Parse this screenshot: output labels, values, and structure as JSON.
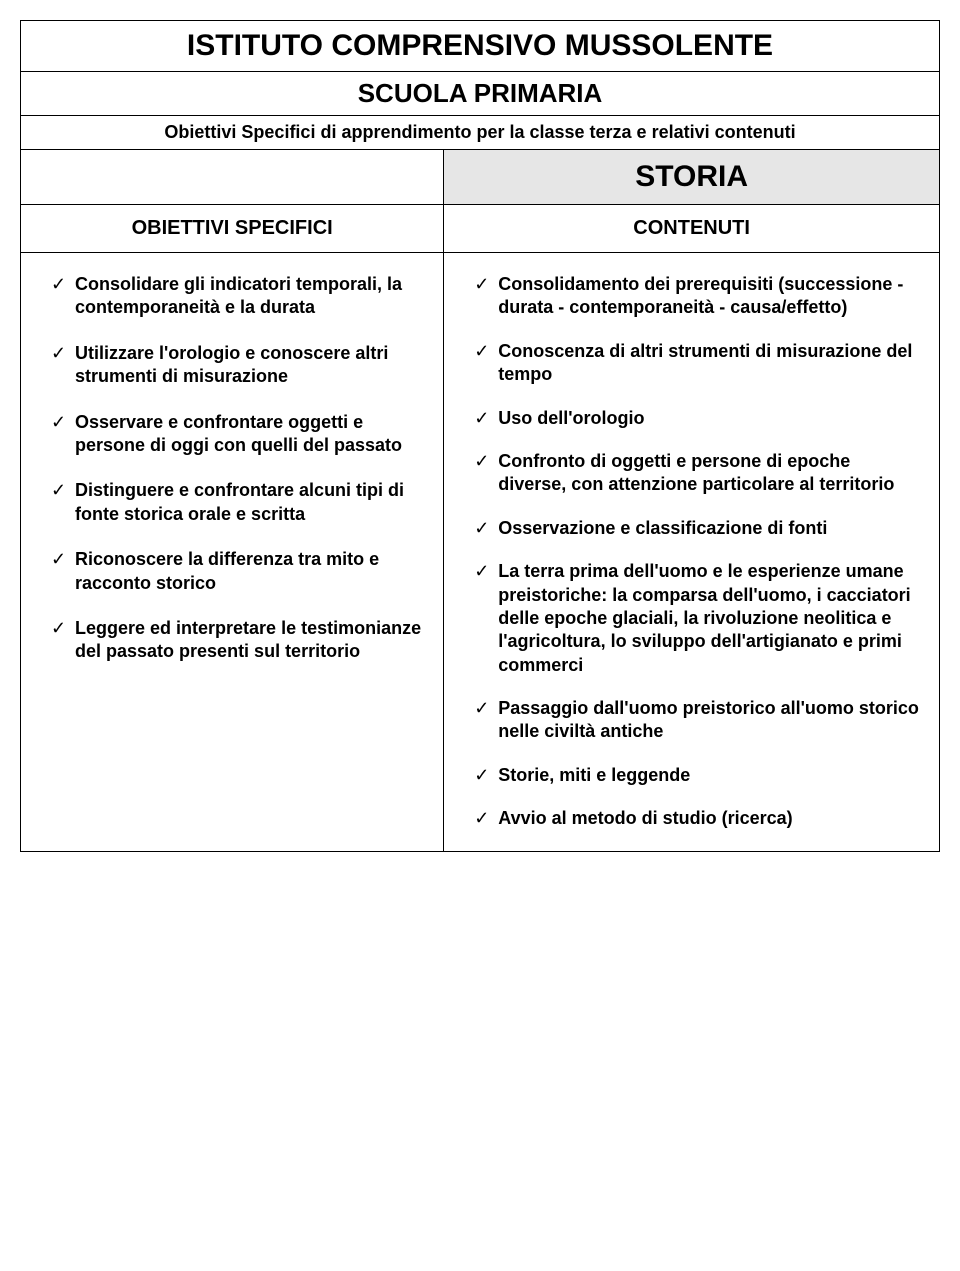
{
  "colors": {
    "background": "#ffffff",
    "text": "#000000",
    "border": "#000000",
    "shaded": "#e6e6e6"
  },
  "typography": {
    "font_family": "Arial",
    "title_size_pt": 22,
    "subject_size_pt": 22,
    "subtitle_size_pt": 13,
    "header_label_size_pt": 15,
    "list_item_size_pt": 13,
    "list_item_weight": "bold"
  },
  "layout": {
    "left_col_width_pct": 46,
    "right_col_width_pct": 54
  },
  "header": {
    "institute": "ISTITUTO COMPRENSIVO MUSSOLENTE",
    "school": "SCUOLA PRIMARIA",
    "subtitle": "Obiettivi Specifici di apprendimento per la  classe terza e relativi contenuti",
    "subject": "STORIA",
    "left_label": "OBIETTIVI SPECIFICI",
    "right_label": "CONTENUTI"
  },
  "objectives": [
    "Consolidare gli indicatori temporali, la contemporaneità e la durata",
    "Utilizzare l'orologio e conoscere altri strumenti di misurazione",
    "Osservare e confrontare oggetti e persone di oggi con quelli del passato",
    "Distinguere e confrontare alcuni tipi di fonte storica orale e scritta",
    "Riconoscere la differenza tra mito e racconto storico",
    "Leggere ed interpretare le testimonianze del passato presenti sul territorio"
  ],
  "contents": [
    "Consolidamento dei prerequisiti (successione - durata - contemporaneità - causa/effetto)",
    "Conoscenza di altri strumenti di misurazione del tempo",
    "Uso dell'orologio",
    "Confronto di oggetti e persone di epoche diverse, con attenzione particolare al territorio",
    "Osservazione e classificazione di fonti",
    "La terra prima dell'uomo e le esperienze umane preistoriche: la comparsa dell'uomo, i cacciatori delle epoche glaciali, la rivoluzione neolitica e l'agricoltura, lo sviluppo dell'artigianato e primi commerci",
    "Passaggio dall'uomo preistorico all'uomo storico nelle civiltà antiche",
    "Storie, miti e leggende",
    "Avvio al metodo di studio (ricerca)"
  ]
}
